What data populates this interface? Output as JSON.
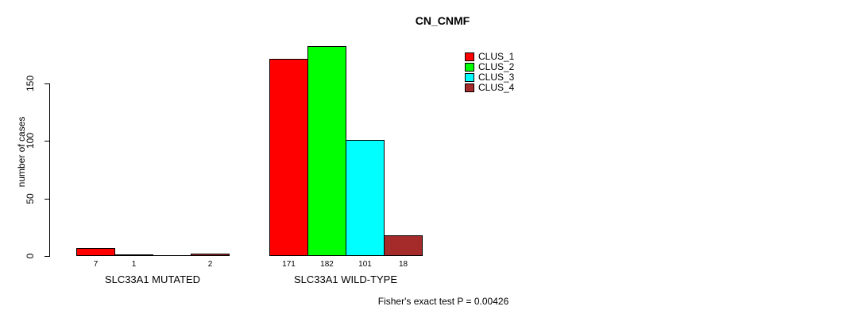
{
  "chart_data": {
    "type": "bar",
    "title": "CN_CNMF",
    "ylabel": "number of cases",
    "xlabel": "",
    "ylim": [
      0,
      150
    ],
    "yticks": [
      0,
      50,
      100,
      150
    ],
    "grid": false,
    "legend_position": "top-right",
    "legend": [
      {
        "name": "CLUS_1",
        "color": "#FF0000"
      },
      {
        "name": "CLUS_2",
        "color": "#00FF00"
      },
      {
        "name": "CLUS_3",
        "color": "#00FFFF"
      },
      {
        "name": "CLUS_4",
        "color": "#A52A2A"
      }
    ],
    "groups": [
      {
        "label": "SLC33A1 MUTATED",
        "values": [
          7,
          1,
          0,
          2
        ],
        "bar_labels": [
          "7",
          "1",
          "",
          "2"
        ]
      },
      {
        "label": "SLC33A1 WILD-TYPE",
        "values": [
          171,
          182,
          101,
          18
        ],
        "bar_labels": [
          "171",
          "182",
          "101",
          "18"
        ]
      }
    ],
    "footnote": "Fisher's exact test P = 0.00426",
    "axis_color": "#000000",
    "text_color": "#000000",
    "background_color": "#FFFFFF"
  }
}
